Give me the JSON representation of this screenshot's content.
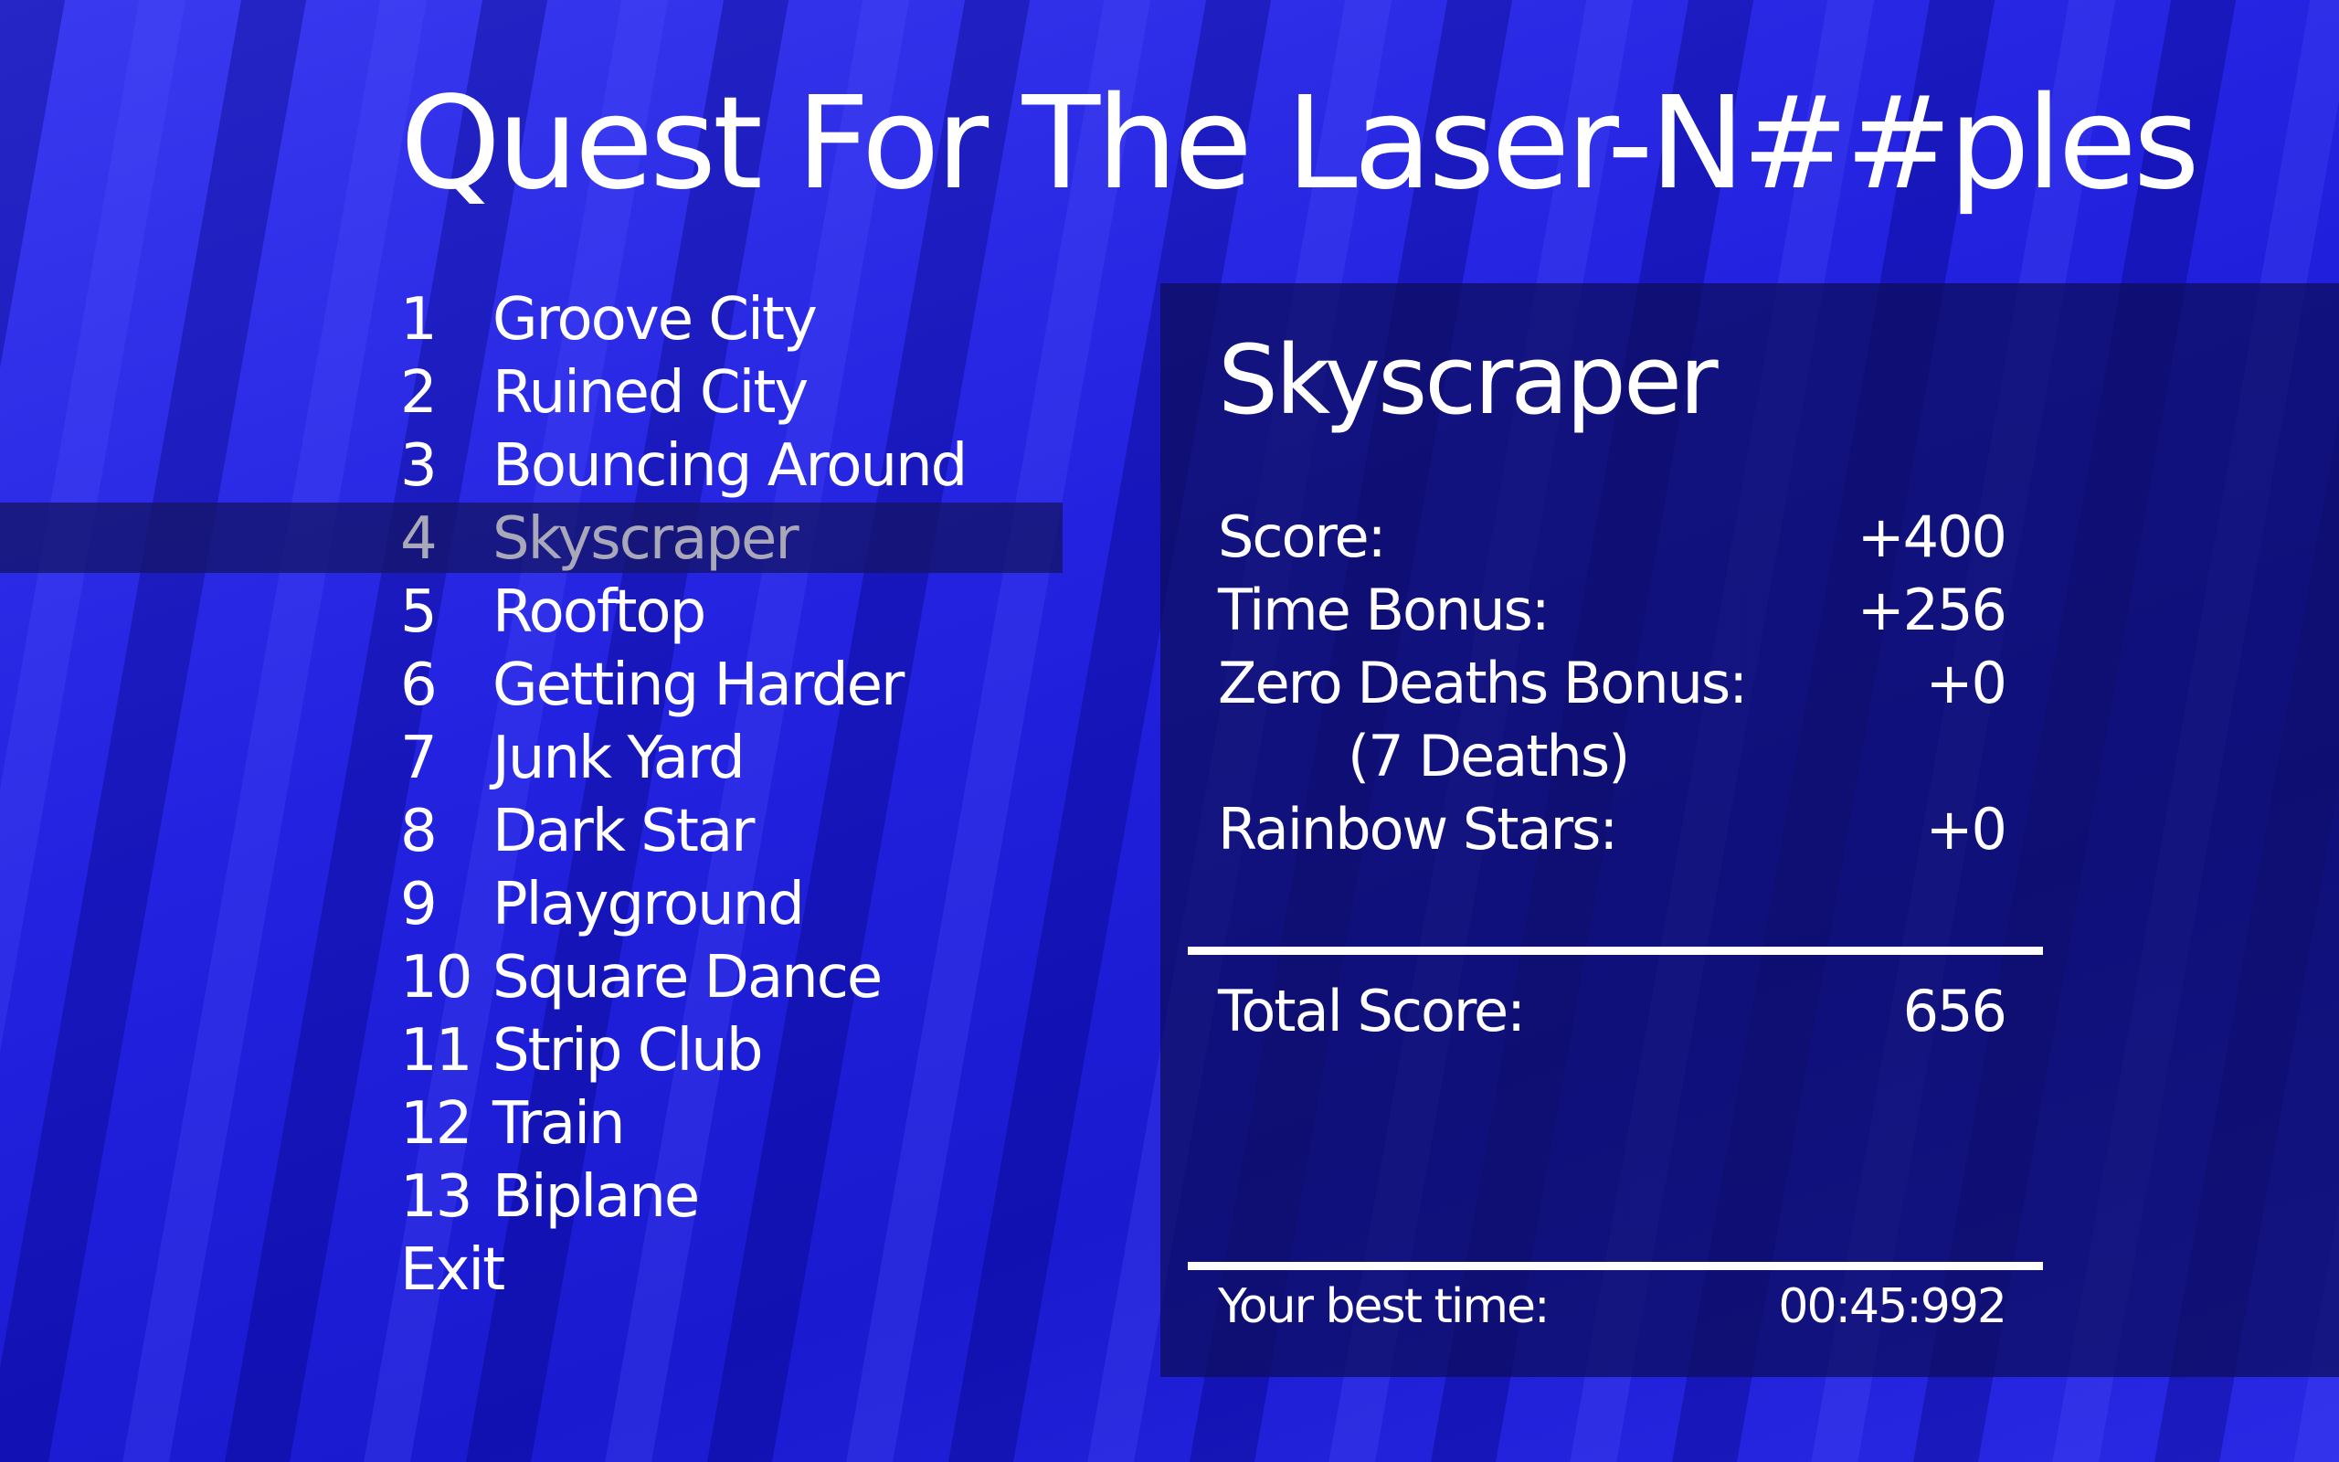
{
  "title": "Quest For The Laser-N##ples",
  "menu": {
    "items": [
      {
        "num": "1",
        "name": "Groove City"
      },
      {
        "num": "2",
        "name": "Ruined City"
      },
      {
        "num": "3",
        "name": "Bouncing Around"
      },
      {
        "num": "4",
        "name": "Skyscraper"
      },
      {
        "num": "5",
        "name": "Rooftop"
      },
      {
        "num": "6",
        "name": "Getting Harder"
      },
      {
        "num": "7",
        "name": "Junk Yard"
      },
      {
        "num": "8",
        "name": "Dark Star"
      },
      {
        "num": "9",
        "name": "Playground"
      },
      {
        "num": "10",
        "name": "Square Dance"
      },
      {
        "num": "11",
        "name": "Strip Club"
      },
      {
        "num": "12",
        "name": "Train"
      },
      {
        "num": "13",
        "name": "Biplane"
      }
    ],
    "exit_label": "Exit",
    "selected_index": 3
  },
  "panel": {
    "title": "Skyscraper",
    "score_label": "Score:",
    "score_value": "+400",
    "time_bonus_label": "Time Bonus:",
    "time_bonus_value": "+256",
    "zero_deaths_label": "Zero Deaths Bonus:",
    "zero_deaths_value": "+0",
    "deaths_note": "(7 Deaths)",
    "rainbow_label": "Rainbow Stars:",
    "rainbow_value": "+0",
    "total_label": "Total Score:",
    "total_value": "656",
    "best_time_label": "Your best time:",
    "best_time_value": "00:45:992"
  },
  "colors": {
    "background": "#2222e0",
    "highlight": "#141464",
    "selected_text": "#a8a8b8"
  }
}
